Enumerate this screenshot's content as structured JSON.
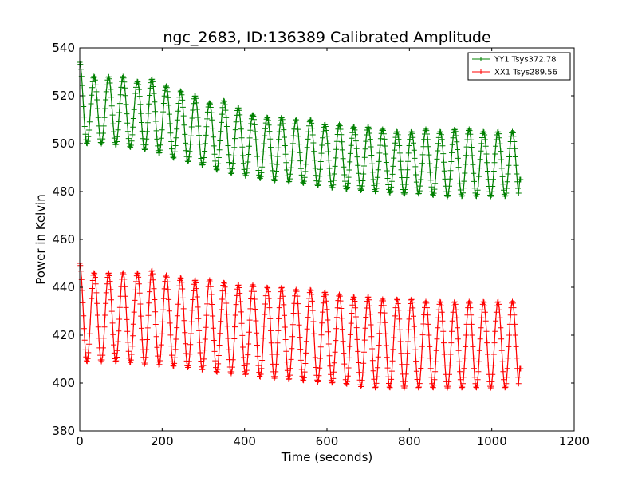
{
  "chart_data": {
    "type": "line",
    "title": "ngc_2683, ID:136389 Calibrated Amplitude",
    "xlabel": "Time (seconds)",
    "ylabel": "Power in Kelvin",
    "xlim": [
      0,
      1200
    ],
    "ylim": [
      380,
      540
    ],
    "xticks": [
      0,
      200,
      400,
      600,
      800,
      1000,
      1200
    ],
    "yticks": [
      380,
      400,
      420,
      440,
      460,
      480,
      500,
      520,
      540
    ],
    "xtick_labels": [
      "0",
      "200",
      "400",
      "600",
      "800",
      "1000",
      "1200"
    ],
    "ytick_labels": [
      "380",
      "400",
      "420",
      "440",
      "460",
      "480",
      "500",
      "520",
      "540"
    ],
    "grid": false,
    "legend_position": "top-right",
    "marker": "+",
    "series": [
      {
        "name": "YY1 Tsys372.78",
        "color": "#008000",
        "period_seconds": 35,
        "x_end": 1070,
        "x": [
          0,
          35,
          70,
          105,
          140,
          175,
          210,
          245,
          280,
          315,
          350,
          385,
          420,
          455,
          490,
          525,
          560,
          595,
          630,
          665,
          700,
          735,
          770,
          805,
          840,
          875,
          910,
          945,
          980,
          1015,
          1050
        ],
        "peak": [
          534,
          528,
          528,
          528,
          526,
          527,
          524,
          522,
          520,
          517,
          518,
          515,
          512,
          511,
          511,
          510,
          510,
          508,
          508,
          507,
          507,
          506,
          505,
          505,
          506,
          505,
          506,
          506,
          505,
          505,
          505
        ],
        "trough": [
          500,
          500,
          500,
          499,
          498,
          497,
          495,
          493,
          492,
          490,
          488,
          487,
          486,
          485,
          484,
          484,
          483,
          482,
          481,
          481,
          480,
          480,
          479,
          479,
          479,
          478,
          478,
          478,
          478,
          478,
          478
        ],
        "end_value": 485
      },
      {
        "name": "XX1 Tsys289.56",
        "color": "#ff0000",
        "period_seconds": 35,
        "x_end": 1070,
        "x": [
          0,
          35,
          70,
          105,
          140,
          175,
          210,
          245,
          280,
          315,
          350,
          385,
          420,
          455,
          490,
          525,
          560,
          595,
          630,
          665,
          700,
          735,
          770,
          805,
          840,
          875,
          910,
          945,
          980,
          1015,
          1050
        ],
        "peak": [
          450,
          446,
          446,
          446,
          446,
          447,
          445,
          444,
          443,
          443,
          442,
          441,
          441,
          440,
          440,
          439,
          439,
          438,
          437,
          436,
          436,
          435,
          435,
          435,
          434,
          434,
          434,
          434,
          434,
          434,
          434
        ],
        "trough": [
          409,
          409,
          409,
          409,
          408,
          408,
          407,
          407,
          406,
          405,
          404,
          404,
          403,
          402,
          402,
          401,
          401,
          400,
          400,
          399,
          398,
          398,
          398,
          398,
          398,
          398,
          398,
          398,
          398,
          398,
          398
        ],
        "end_value": 406
      }
    ]
  }
}
